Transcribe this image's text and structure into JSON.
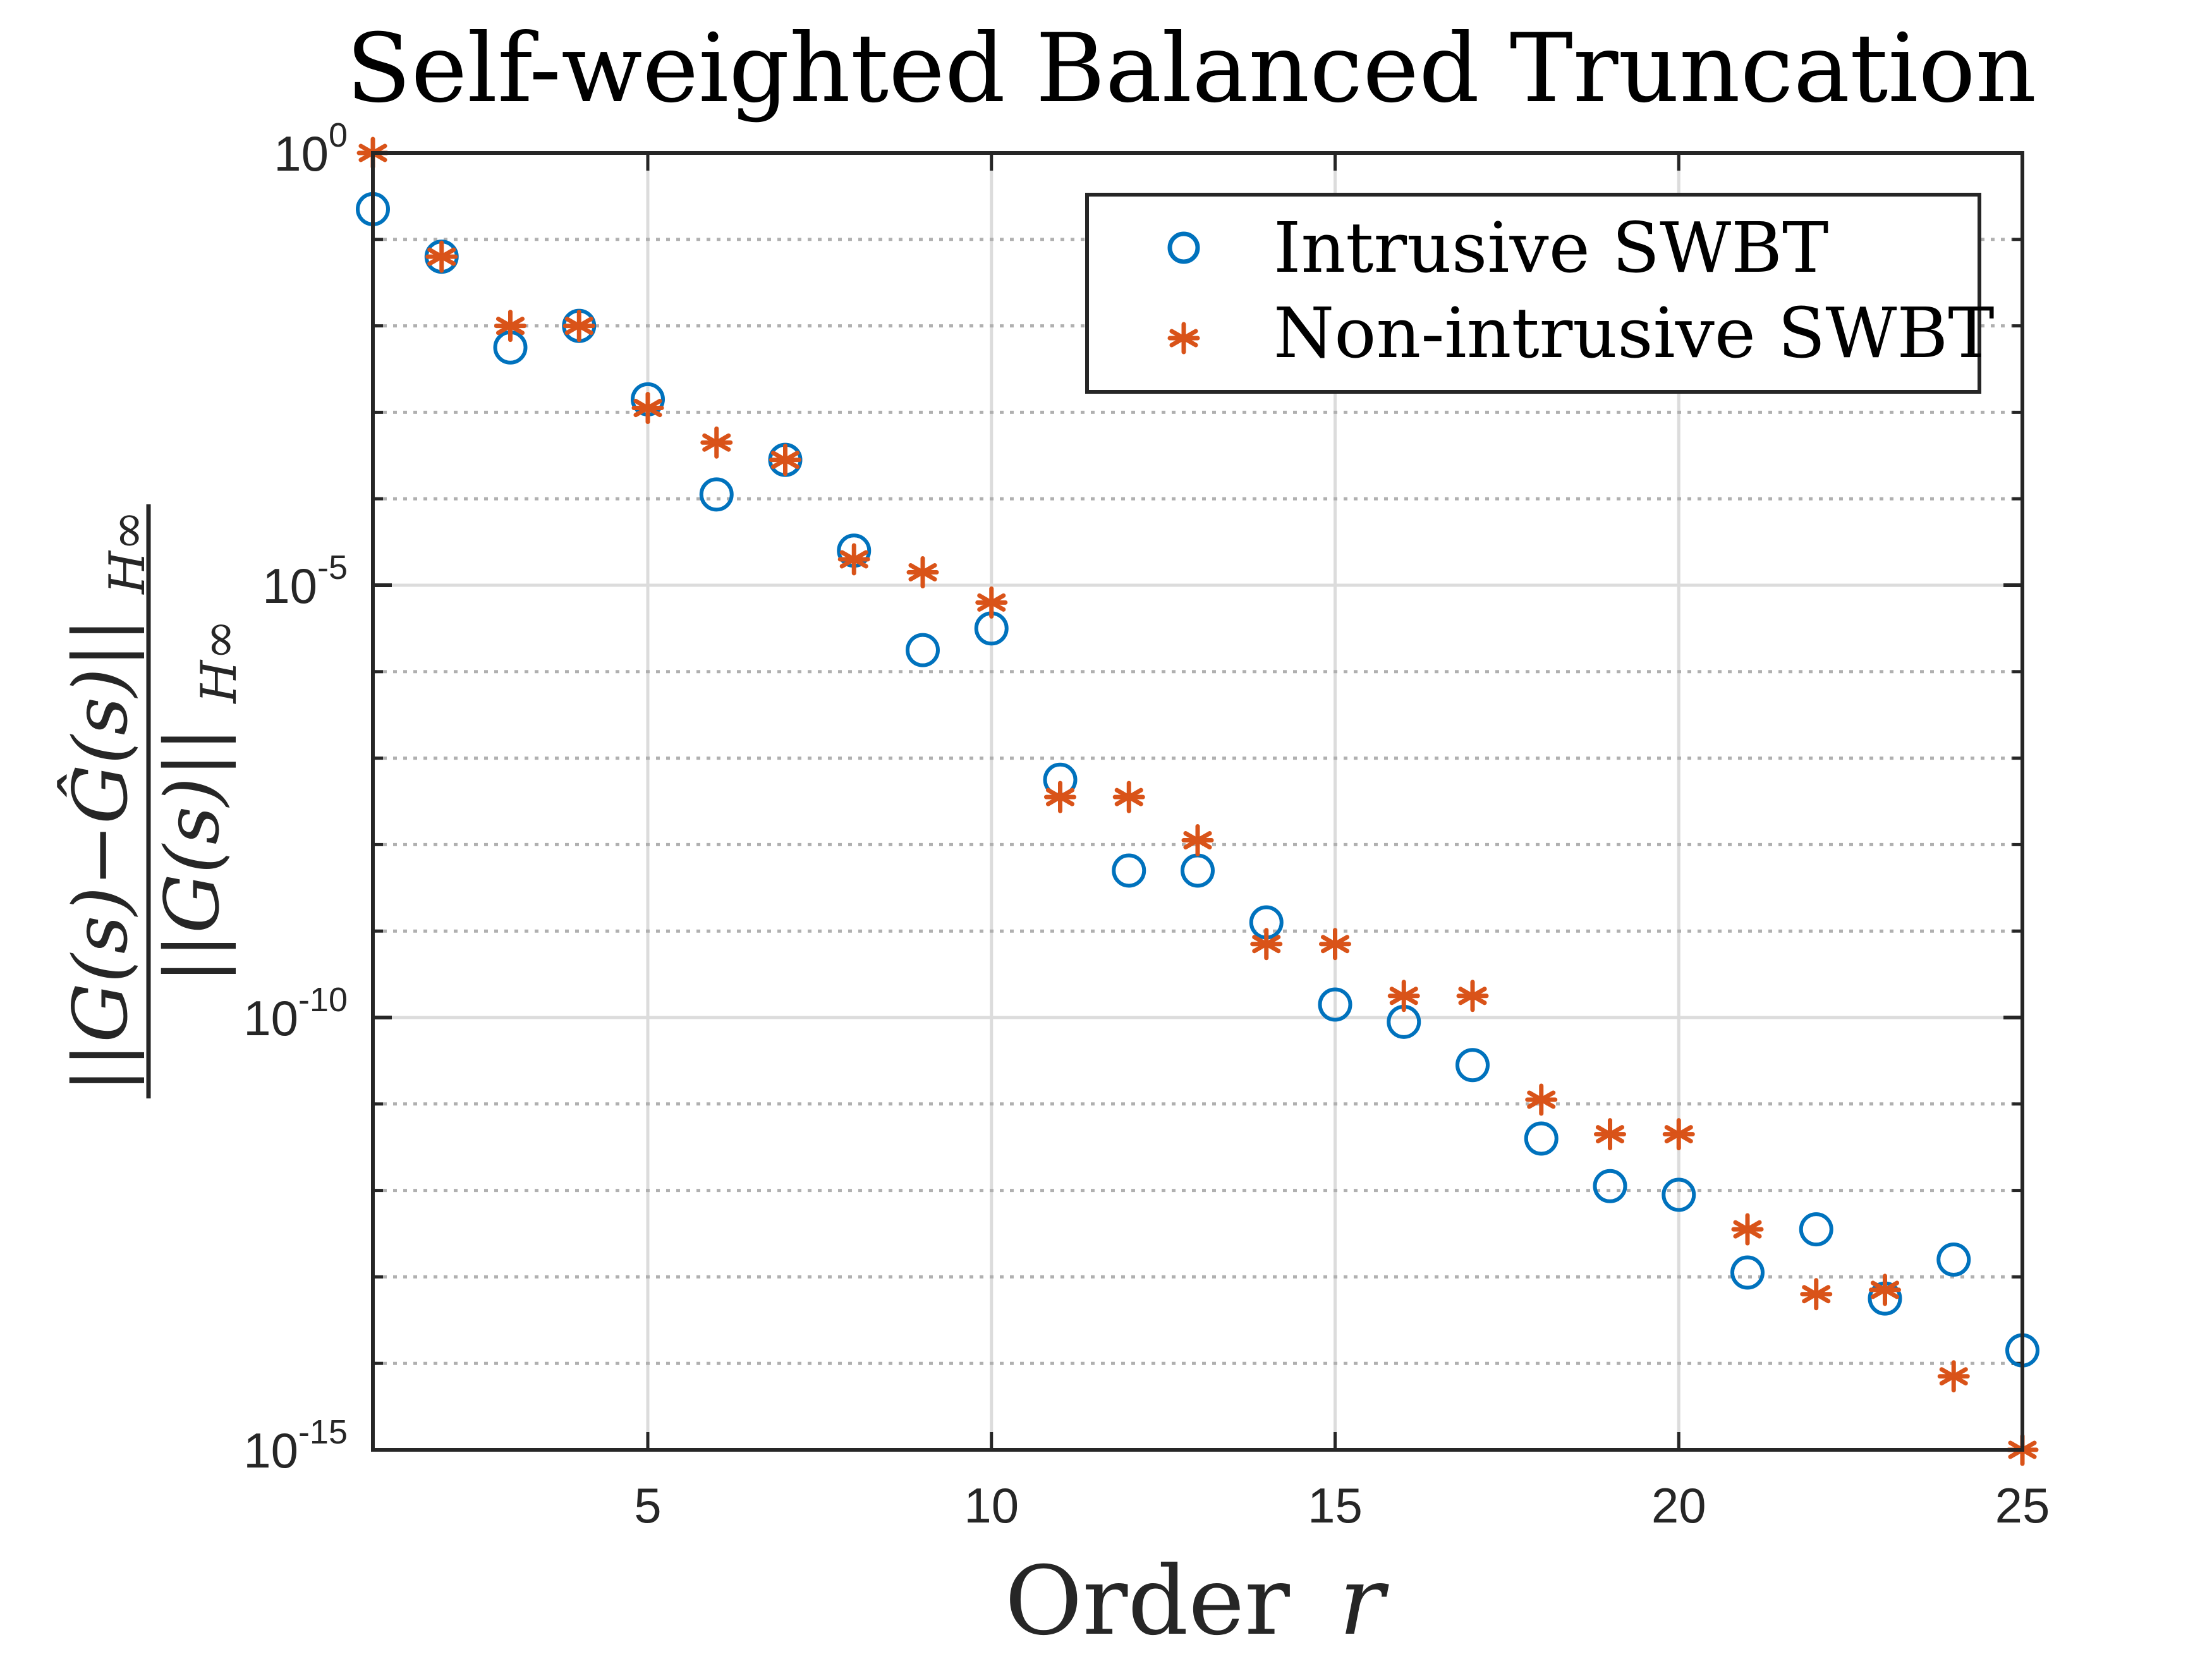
{
  "chart_data": {
    "type": "scatter",
    "title": "Self-weighted Balanced Truncation",
    "xlabel": "Order r",
    "xlabel_text": "Order",
    "xlabel_var": "r",
    "ylabel": "||G(s) − Ĝ(s)||_H∞ / ||G(s)||_H∞",
    "ylabel_numerator": "||G(s)−Ĝ(s)||",
    "ylabel_denominator": "||G(s)||",
    "ylabel_subscript": "H∞",
    "xscale": "linear",
    "yscale": "log",
    "xlim": [
      1,
      25
    ],
    "ylim": [
      1e-15,
      1
    ],
    "xticks": [
      5,
      10,
      15,
      20,
      25
    ],
    "xtick_labels": [
      "5",
      "10",
      "15",
      "20",
      "25"
    ],
    "yticks": [
      1e-15,
      1e-10,
      1e-05,
      1
    ],
    "ytick_labels": [
      {
        "base": "10",
        "exp": "-15"
      },
      {
        "base": "10",
        "exp": "-10"
      },
      {
        "base": "10",
        "exp": "-5"
      },
      {
        "base": "10",
        "exp": "0"
      }
    ],
    "grid": true,
    "legend_position": "top-right",
    "x": [
      1,
      2,
      3,
      4,
      5,
      6,
      7,
      8,
      9,
      10,
      11,
      12,
      13,
      14,
      15,
      16,
      17,
      18,
      19,
      20,
      21,
      22,
      23,
      24,
      25
    ],
    "series": [
      {
        "name": "Intrusive SWBT",
        "marker": "circle",
        "color": "#0072BD",
        "log10_values": [
          -0.65,
          -1.2,
          -2.25,
          -2.0,
          -2.85,
          -3.95,
          -3.55,
          -4.6,
          -5.75,
          -5.5,
          -7.25,
          -8.3,
          -8.3,
          -8.9,
          -9.85,
          -10.05,
          -10.55,
          -11.4,
          -11.95,
          -12.05,
          -12.95,
          -12.45,
          -13.25,
          -12.8,
          -13.85
        ],
        "values": [
          0.22,
          0.063,
          0.0056,
          0.01,
          0.0014,
          0.00011,
          0.00028,
          2.5e-05,
          1.8e-06,
          3.2e-06,
          5.6e-08,
          5e-09,
          5e-09,
          1.3e-09,
          1.4e-10,
          8.9e-11,
          2.8e-11,
          4e-12,
          1.1e-12,
          8.9e-13,
          1.1e-13,
          3.5e-13,
          5.6e-14,
          1.6e-13,
          1.4e-14
        ]
      },
      {
        "name": "Non-intrusive SWBT",
        "marker": "asterisk",
        "color": "#D95319",
        "log10_values": [
          0.0,
          -1.2,
          -2.0,
          -2.0,
          -2.95,
          -3.35,
          -3.55,
          -4.7,
          -4.85,
          -5.2,
          -7.45,
          -7.45,
          -7.95,
          -9.15,
          -9.15,
          -9.75,
          -9.75,
          -10.95,
          -11.35,
          -11.35,
          -12.45,
          -13.2,
          -13.15,
          -14.15,
          -15.0
        ],
        "values": [
          1.0,
          0.063,
          0.01,
          0.01,
          0.0011,
          0.00045,
          0.00028,
          2e-05,
          1.4e-05,
          6.3e-06,
          3.5e-08,
          3.5e-08,
          1.1e-08,
          7.1e-10,
          7.1e-10,
          1.8e-10,
          1.8e-10,
          1.1e-11,
          4.5e-12,
          4.5e-12,
          3.5e-13,
          6.3e-14,
          7.1e-14,
          7.1e-15,
          1e-15
        ]
      }
    ]
  }
}
